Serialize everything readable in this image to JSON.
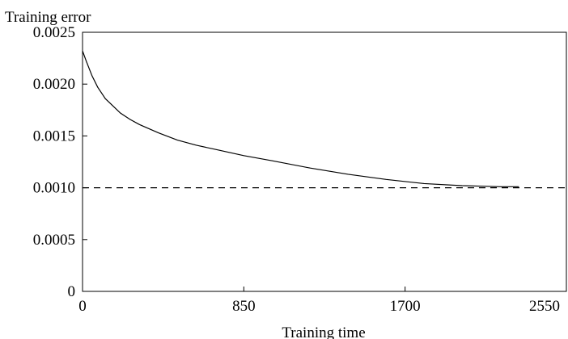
{
  "chart_data": {
    "type": "line",
    "title": "",
    "xlabel": "Training time",
    "ylabel": "Training error",
    "xlim": [
      0,
      2550
    ],
    "ylim": [
      0,
      0.0025
    ],
    "x_ticks": [
      0,
      850,
      1700,
      2550
    ],
    "x_tick_labels": [
      "0",
      "850",
      "1700",
      "2550"
    ],
    "y_ticks": [
      0,
      0.0005,
      0.001,
      0.0015,
      0.002,
      0.0025
    ],
    "y_tick_labels": [
      "0",
      "0.0005",
      "0.0010",
      "0.0015",
      "0.0020",
      "0.0025"
    ],
    "grid": false,
    "legend": false,
    "series": [
      {
        "style": "solid",
        "color": "#000000",
        "x": [
          0,
          20,
          50,
          80,
          120,
          160,
          200,
          250,
          300,
          400,
          500,
          600,
          700,
          850,
          1000,
          1200,
          1400,
          1600,
          1800,
          2000,
          2200,
          2300
        ],
        "y": [
          0.00232,
          0.00222,
          0.00208,
          0.00197,
          0.00186,
          0.00179,
          0.00172,
          0.00166,
          0.00161,
          0.00153,
          0.00146,
          0.00141,
          0.00137,
          0.00131,
          0.00126,
          0.00119,
          0.00113,
          0.00108,
          0.00104,
          0.00102,
          0.00101,
          0.00101
        ]
      },
      {
        "style": "dashed",
        "color": "#000000",
        "x": [
          0,
          2550
        ],
        "y": [
          0.001,
          0.001
        ]
      }
    ]
  }
}
